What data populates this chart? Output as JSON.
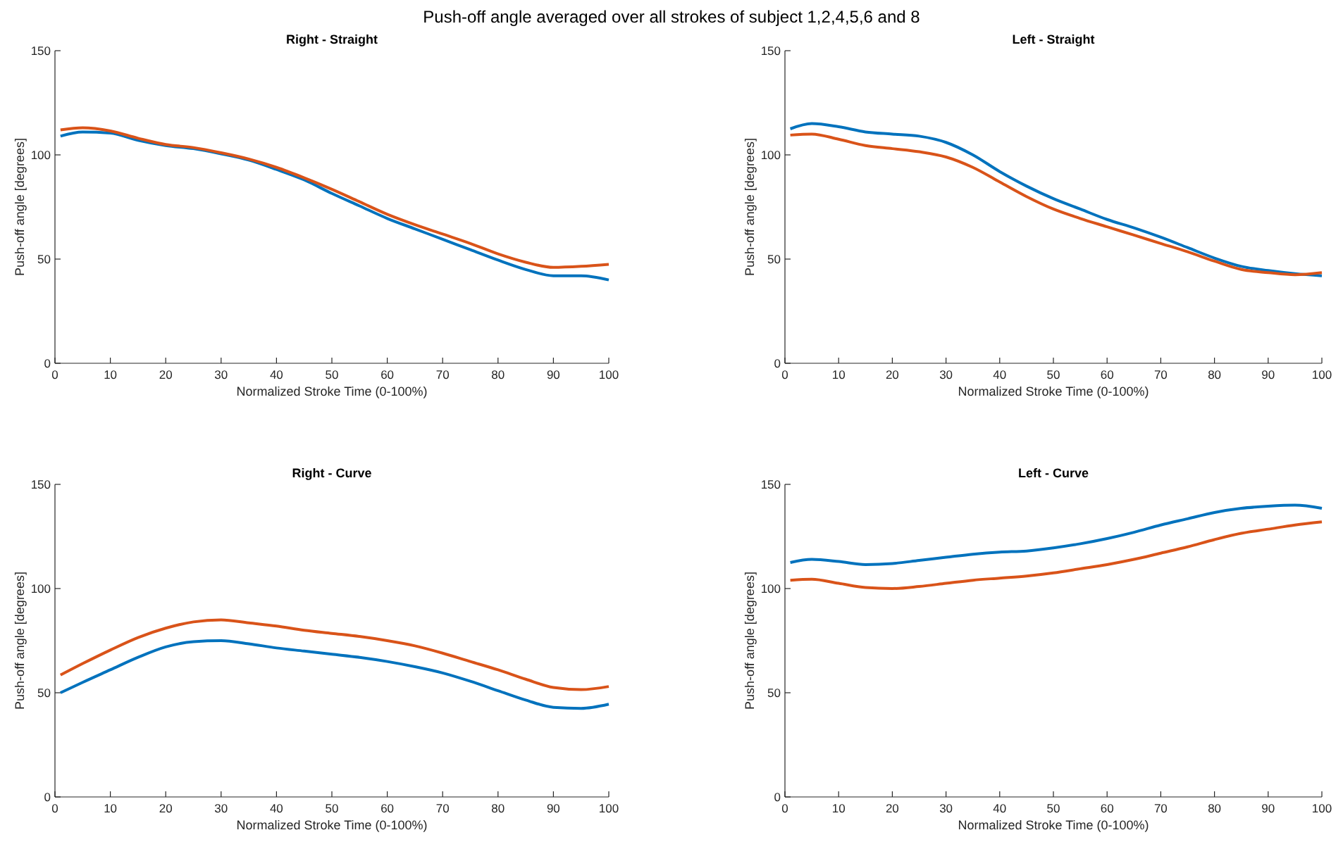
{
  "chart_data": [
    {
      "type": "line",
      "title": "Right - Straight",
      "xlabel": "Normalized Stroke Time (0-100%)",
      "ylabel": "Push-off angle [degrees]",
      "annotations": [
        "Push-off angle averaged over all strokes of subject 1,2,4,5,6 and 8"
      ],
      "x": [
        1,
        5,
        10,
        15,
        20,
        25,
        30,
        35,
        40,
        45,
        50,
        55,
        60,
        65,
        70,
        75,
        80,
        85,
        90,
        95,
        100
      ],
      "xlim": [
        0,
        100
      ],
      "xticks": [
        0,
        10,
        20,
        30,
        40,
        50,
        60,
        70,
        80,
        90,
        100
      ],
      "ylim": [
        0,
        150
      ],
      "yticks": [
        0,
        50,
        100,
        150
      ],
      "grid": false,
      "series": [
        {
          "color": "#0072bd",
          "values": [
            109,
            111,
            110.5,
            107,
            104.5,
            103,
            100.5,
            97.5,
            93,
            88,
            81.5,
            75.5,
            69.5,
            64.5,
            59.5,
            54.5,
            49.5,
            45,
            42,
            42,
            40
          ]
        },
        {
          "color": "#d95319",
          "values": [
            112,
            113,
            111.5,
            108,
            105,
            103.5,
            101,
            98,
            94,
            89,
            83.5,
            77.5,
            71.5,
            66.5,
            62,
            57.5,
            52.5,
            48.5,
            46,
            46.5,
            47.5
          ]
        }
      ]
    },
    {
      "type": "line",
      "title": "Left - Straight",
      "xlabel": "Normalized Stroke Time (0-100%)",
      "ylabel": "Push-off angle [degrees]",
      "x": [
        1,
        5,
        10,
        15,
        20,
        25,
        30,
        35,
        40,
        45,
        50,
        55,
        60,
        65,
        70,
        75,
        80,
        85,
        90,
        95,
        100
      ],
      "xlim": [
        0,
        100
      ],
      "xticks": [
        0,
        10,
        20,
        30,
        40,
        50,
        60,
        70,
        80,
        90,
        100
      ],
      "ylim": [
        0,
        150
      ],
      "yticks": [
        0,
        50,
        100,
        150
      ],
      "grid": false,
      "series": [
        {
          "color": "#0072bd",
          "values": [
            112.5,
            115,
            113.5,
            111,
            110,
            109,
            106,
            100,
            92,
            85,
            79,
            74,
            69,
            65,
            60.5,
            55.5,
            50.5,
            46.5,
            44.5,
            43,
            42
          ]
        },
        {
          "color": "#d95319",
          "values": [
            109.5,
            110,
            107.5,
            104.5,
            103,
            101.5,
            99,
            94,
            87,
            80,
            74,
            69.5,
            65.5,
            61.5,
            57.5,
            53.5,
            49,
            45,
            43.5,
            42.5,
            43.5
          ]
        }
      ]
    },
    {
      "type": "line",
      "title": "Right - Curve",
      "xlabel": "Normalized Stroke Time (0-100%)",
      "ylabel": "Push-off angle [degrees]",
      "x": [
        1,
        5,
        10,
        15,
        20,
        25,
        30,
        35,
        40,
        45,
        50,
        55,
        60,
        65,
        70,
        75,
        80,
        85,
        90,
        95,
        100
      ],
      "xlim": [
        0,
        100
      ],
      "xticks": [
        0,
        10,
        20,
        30,
        40,
        50,
        60,
        70,
        80,
        90,
        100
      ],
      "ylim": [
        0,
        150
      ],
      "yticks": [
        0,
        50,
        100,
        150
      ],
      "grid": false,
      "series": [
        {
          "color": "#0072bd",
          "values": [
            50,
            55,
            61,
            67,
            72,
            74.5,
            75,
            73.5,
            71.5,
            70,
            68.5,
            67,
            65,
            62.5,
            59.5,
            55.5,
            51,
            46.5,
            43,
            42.5,
            44.5
          ]
        },
        {
          "color": "#d95319",
          "values": [
            58.5,
            64,
            70.5,
            76.5,
            81,
            84,
            85,
            83.5,
            82,
            80,
            78.5,
            77,
            75,
            72.5,
            69,
            65,
            61,
            56.5,
            52.5,
            51.5,
            53
          ]
        }
      ]
    },
    {
      "type": "line",
      "title": "Left - Curve",
      "xlabel": "Normalized Stroke Time (0-100%)",
      "ylabel": "Push-off angle [degrees]",
      "x": [
        1,
        5,
        10,
        15,
        20,
        25,
        30,
        35,
        40,
        45,
        50,
        55,
        60,
        65,
        70,
        75,
        80,
        85,
        90,
        95,
        100
      ],
      "xlim": [
        0,
        100
      ],
      "xticks": [
        0,
        10,
        20,
        30,
        40,
        50,
        60,
        70,
        80,
        90,
        100
      ],
      "ylim": [
        0,
        150
      ],
      "yticks": [
        0,
        50,
        100,
        150
      ],
      "grid": false,
      "series": [
        {
          "color": "#0072bd",
          "values": [
            112.5,
            114,
            113,
            111.5,
            112,
            113.5,
            115,
            116.5,
            117.5,
            118,
            119.5,
            121.5,
            124,
            127,
            130.5,
            133.5,
            136.5,
            138.5,
            139.5,
            140,
            138.5
          ]
        },
        {
          "color": "#d95319",
          "values": [
            104,
            104.5,
            102.5,
            100.5,
            100,
            101,
            102.5,
            104,
            105,
            106,
            107.5,
            109.5,
            111.5,
            114,
            117,
            120,
            123.5,
            126.5,
            128.5,
            130.5,
            132
          ]
        }
      ]
    }
  ]
}
